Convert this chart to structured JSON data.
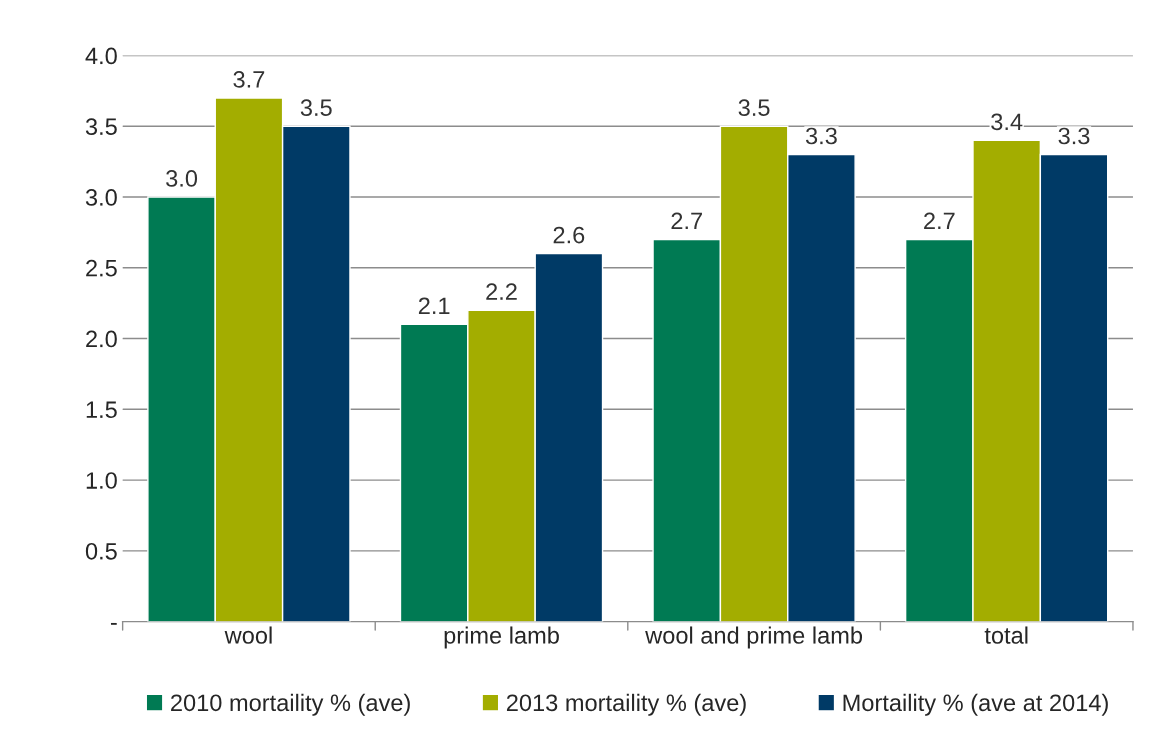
{
  "chart_data": {
    "type": "bar",
    "categories": [
      "wool",
      "prime lamb",
      "wool and prime lamb",
      "total"
    ],
    "series": [
      {
        "name": "2010 mortaility % (ave)",
        "color": "#007a53",
        "values": [
          3.0,
          2.1,
          2.7,
          2.7
        ],
        "value_labels": [
          "3.0",
          "2.1",
          "2.7",
          "2.7"
        ]
      },
      {
        "name": "2013 mortaility % (ave)",
        "color": "#a3ad00",
        "values": [
          3.7,
          2.2,
          3.5,
          3.4
        ],
        "value_labels": [
          "3.7",
          "2.2",
          "3.5",
          "3.4"
        ]
      },
      {
        "name": "Mortaility % (ave at 2014)",
        "color": "#003a66",
        "values": [
          3.5,
          2.6,
          3.3,
          3.3
        ],
        "value_labels": [
          "3.5",
          "2.6",
          "3.3",
          "3.3"
        ]
      }
    ],
    "ylim": [
      0,
      4.0
    ],
    "yticks": [
      {
        "value": 0,
        "label": "-"
      },
      {
        "value": 0.5,
        "label": "0.5"
      },
      {
        "value": 1.0,
        "label": "1.0"
      },
      {
        "value": 1.5,
        "label": "1.5"
      },
      {
        "value": 2.0,
        "label": "2.0"
      },
      {
        "value": 2.5,
        "label": "2.5"
      },
      {
        "value": 3.0,
        "label": "3.0"
      },
      {
        "value": 3.5,
        "label": "3.5"
      },
      {
        "value": 4.0,
        "label": "4.0"
      }
    ],
    "grid": "y",
    "legend": "bottom"
  }
}
